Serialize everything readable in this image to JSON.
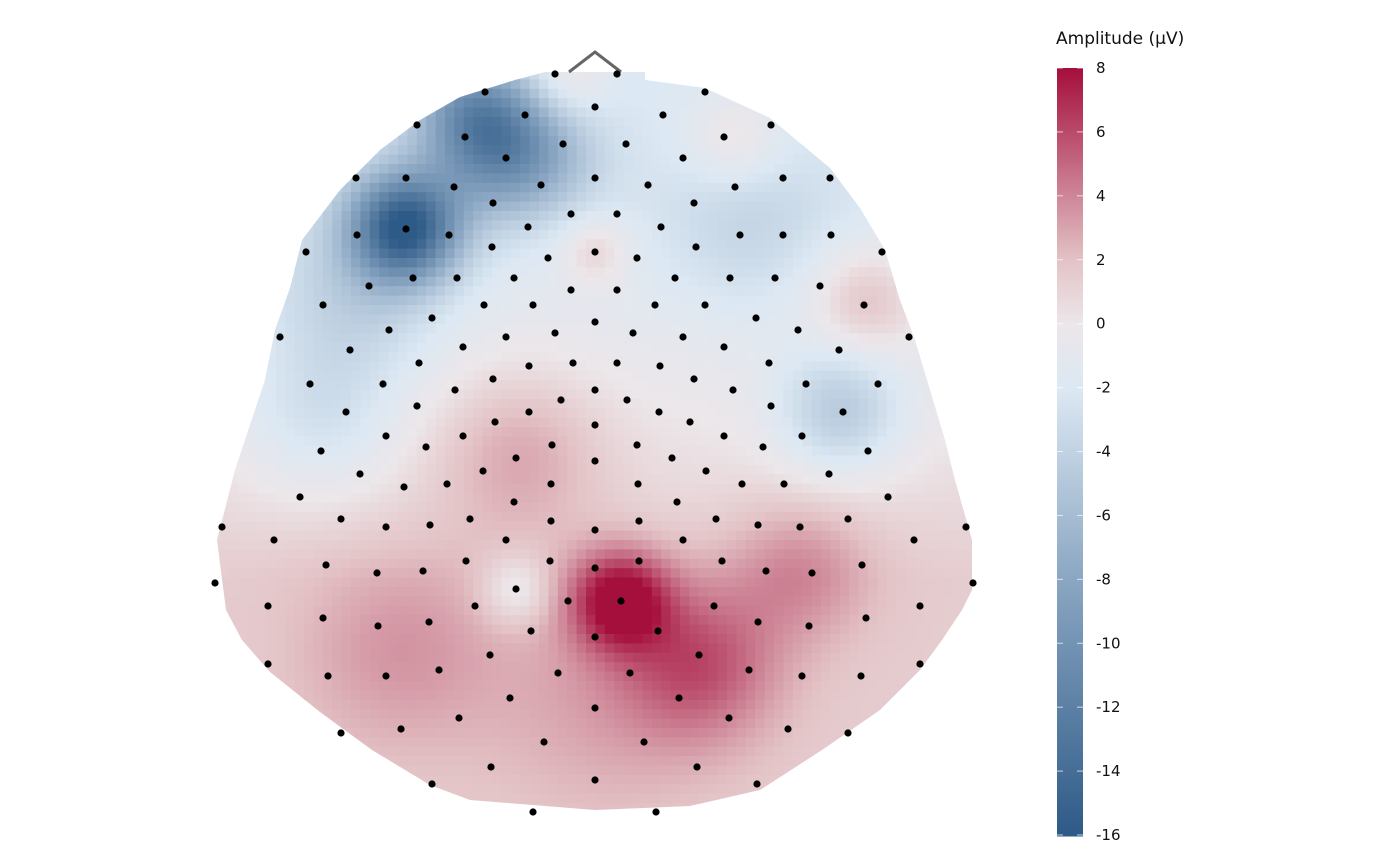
{
  "chart_data": {
    "type": "heatmap",
    "subtype": "scalp topography",
    "title": "",
    "legend": {
      "title": "Amplitude (µV)",
      "placement": "right",
      "range": [
        -16,
        8
      ],
      "ticks": [
        8,
        6,
        4,
        2,
        0,
        -2,
        -4,
        -6,
        -8,
        -10,
        -12,
        -14,
        -16
      ],
      "tick_labels": [
        "8",
        "6",
        "4",
        "2",
        "0",
        "-2",
        "-4",
        "-6",
        "-8",
        "-10",
        "-12",
        "-14",
        "-16"
      ],
      "colors": {
        "-16": "#2e5a87",
        "-8": "#8aa6c2",
        "-2": "#dce8f3",
        "0": "#ece7ea",
        "2": "#e3c3c6",
        "8": "#a50f3c"
      }
    },
    "grid": false,
    "electrode_markers": "black dots",
    "nose_marker": true,
    "features": {
      "min_region": "left frontal, about -15 µV",
      "max_region": "right centro-parietal, about 8 µV"
    }
  }
}
